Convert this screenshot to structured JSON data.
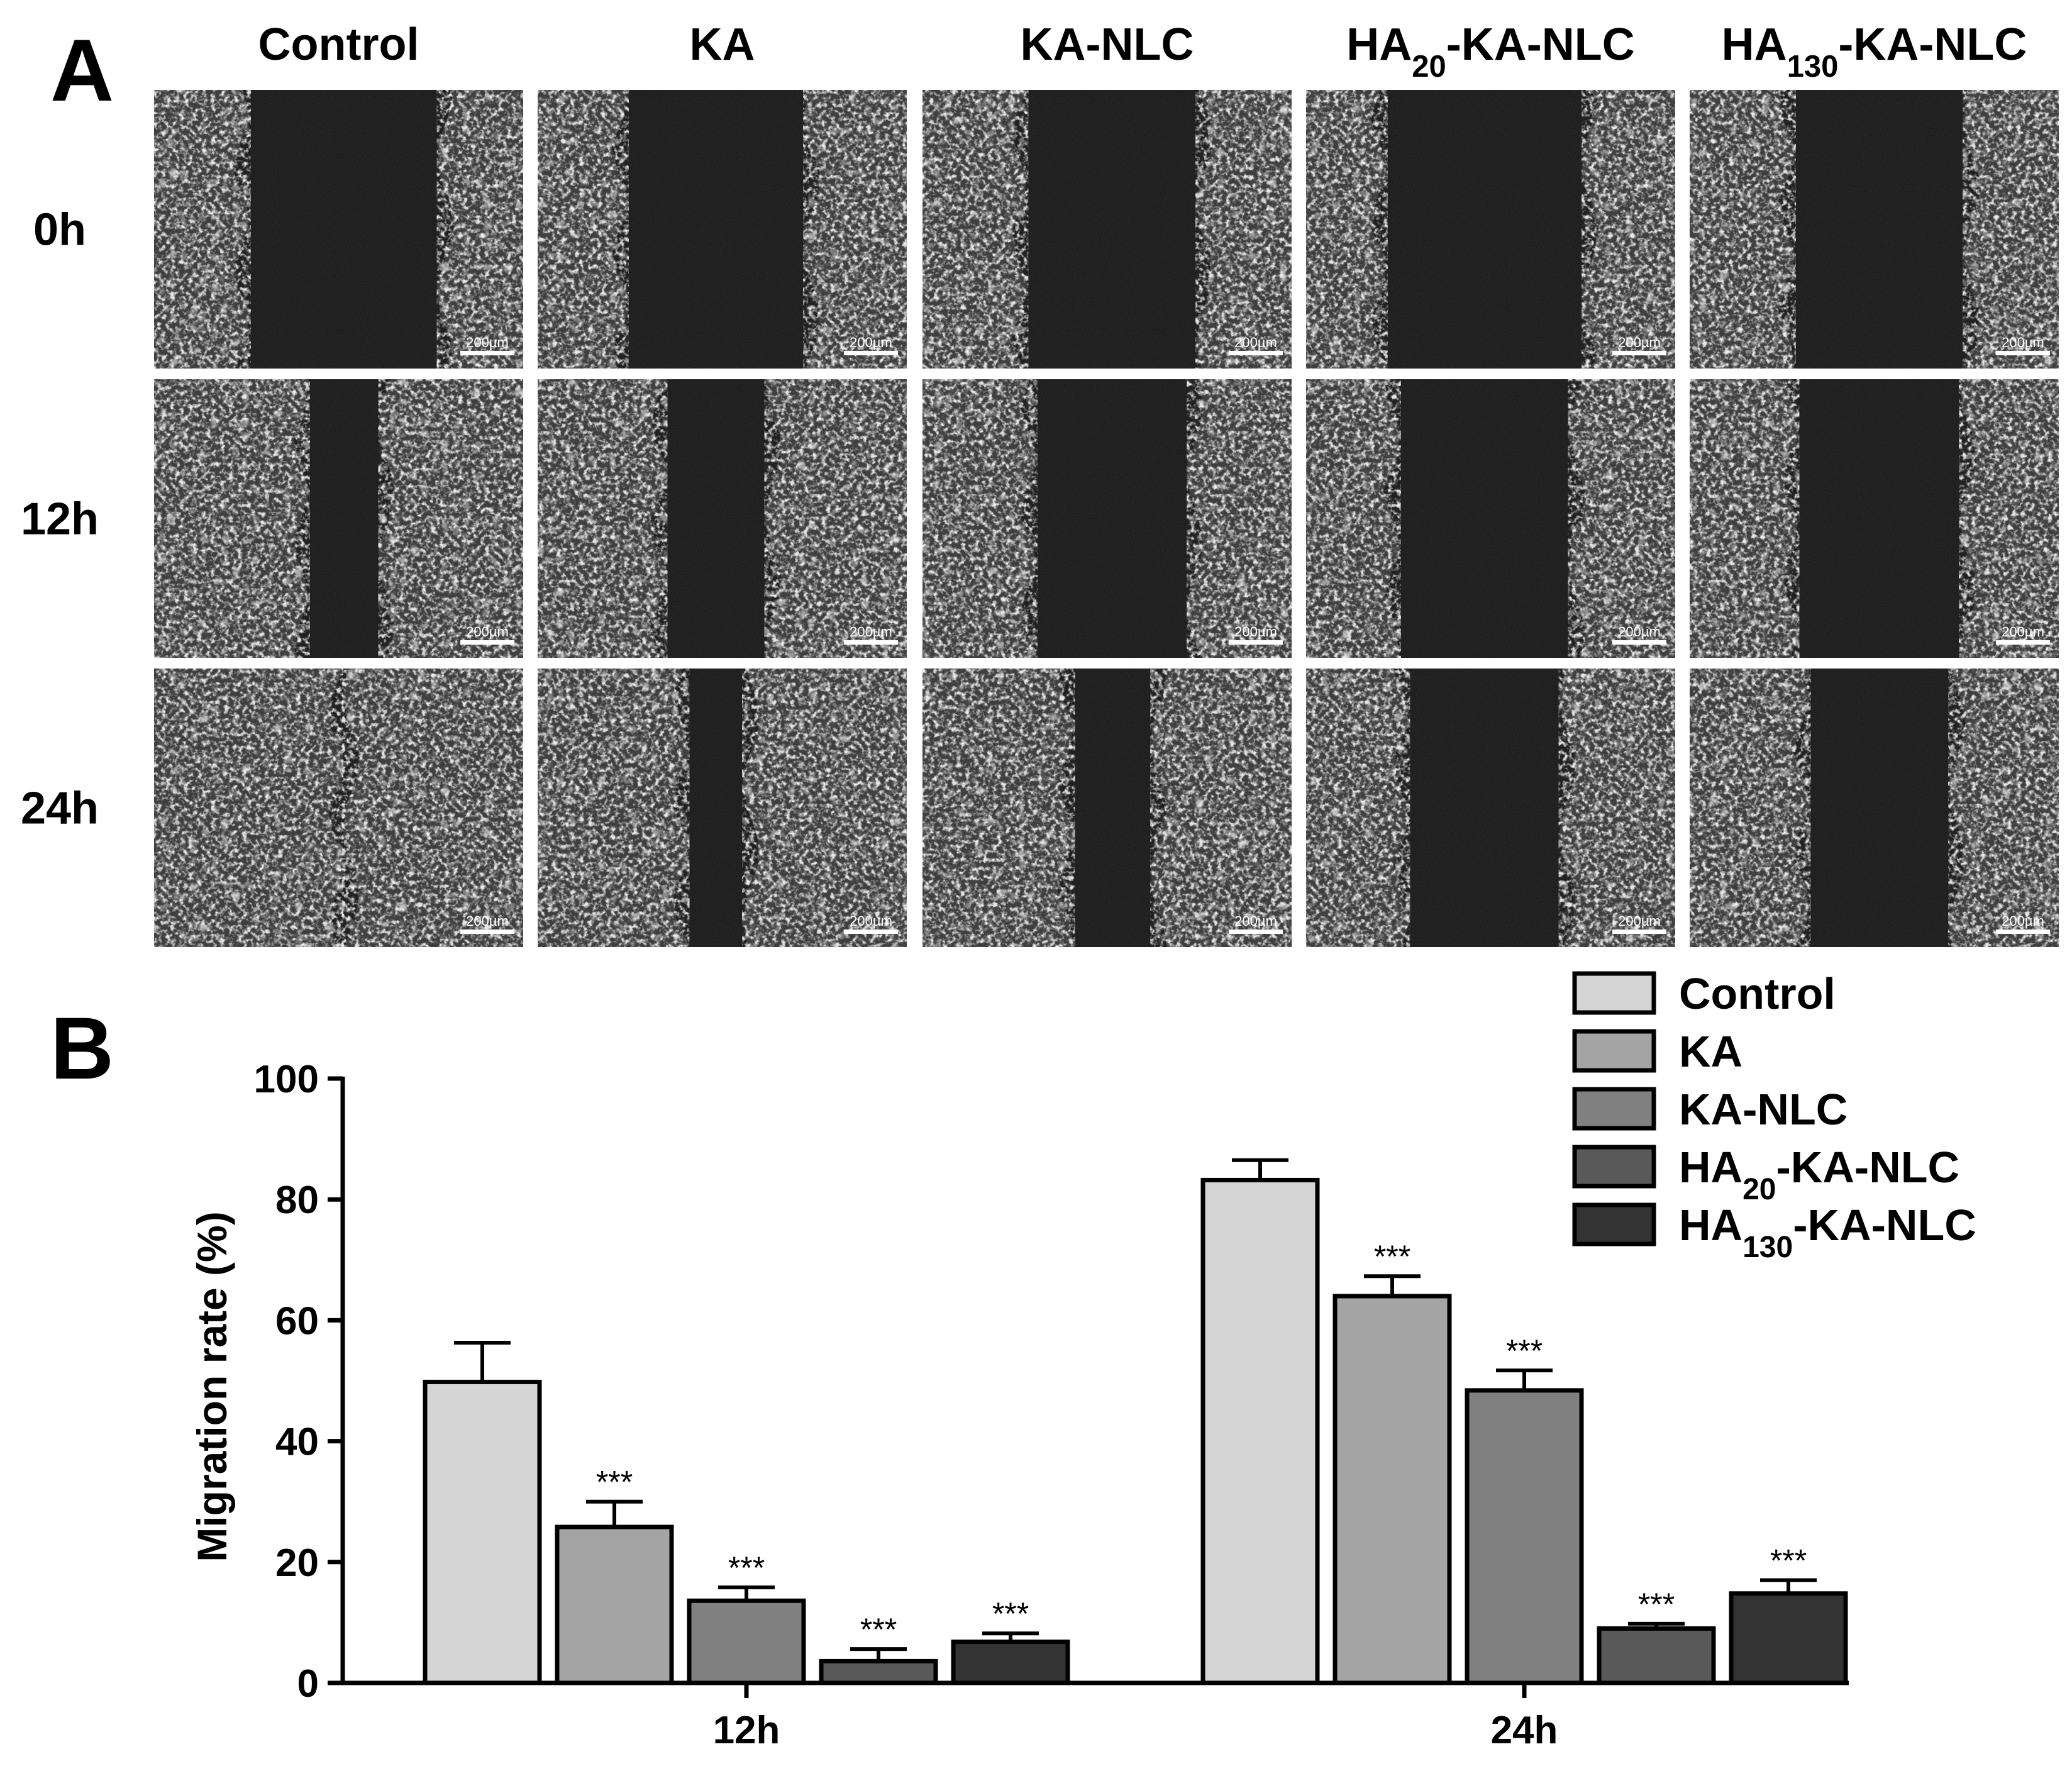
{
  "panel_a": {
    "letter": "A",
    "columns": [
      {
        "main": "Control",
        "sub": "",
        "tail": ""
      },
      {
        "main": "KA",
        "sub": "",
        "tail": ""
      },
      {
        "main": "KA-NLC",
        "sub": "",
        "tail": ""
      },
      {
        "main": "HA",
        "sub": "20",
        "tail": "-KA-NLC"
      },
      {
        "main": "HA",
        "sub": "130",
        "tail": "-KA-NLC"
      }
    ],
    "rows": [
      "0h",
      "12h",
      "24h"
    ],
    "scale_bar": "200µm",
    "gap_fraction": [
      [
        0.55,
        0.52,
        0.5,
        0.57,
        0.5
      ],
      [
        0.23,
        0.31,
        0.45,
        0.5,
        0.48
      ],
      [
        0.04,
        0.19,
        0.25,
        0.45,
        0.42
      ]
    ]
  },
  "panel_b": {
    "letter": "B"
  },
  "chart_data": {
    "type": "bar",
    "categories": [
      "12h",
      "24h"
    ],
    "ylabel": "Migration rate (%)",
    "ylim": [
      0,
      100
    ],
    "yticks": [
      0,
      20,
      40,
      60,
      80,
      100
    ],
    "series": [
      {
        "name": "Control",
        "sub": "",
        "tail": "",
        "color": "#d4d4d4",
        "values": [
          49.8,
          83.2
        ],
        "errors": [
          6.5,
          3.3
        ],
        "marks": [
          "",
          ""
        ]
      },
      {
        "name": "KA",
        "sub": "",
        "tail": "",
        "color": "#a4a4a4",
        "values": [
          25.8,
          64.0
        ],
        "errors": [
          4.2,
          3.3
        ],
        "marks": [
          "***",
          "***"
        ]
      },
      {
        "name": "KA-NLC",
        "sub": "",
        "tail": "",
        "color": "#808080",
        "values": [
          13.6,
          48.4
        ],
        "errors": [
          2.2,
          3.3
        ],
        "marks": [
          "***",
          "***"
        ]
      },
      {
        "name": "HA",
        "sub": "20",
        "tail": "-KA-NLC",
        "color": "#595959",
        "values": [
          3.6,
          9.0
        ],
        "errors": [
          2.0,
          0.8
        ],
        "marks": [
          "***",
          "***"
        ]
      },
      {
        "name": "HA",
        "sub": "130",
        "tail": "-KA-NLC",
        "color": "#333333",
        "values": [
          6.8,
          14.8
        ],
        "errors": [
          1.4,
          2.2
        ],
        "marks": [
          "***",
          "***"
        ]
      }
    ],
    "legend_position": "top-right",
    "grid": false
  }
}
